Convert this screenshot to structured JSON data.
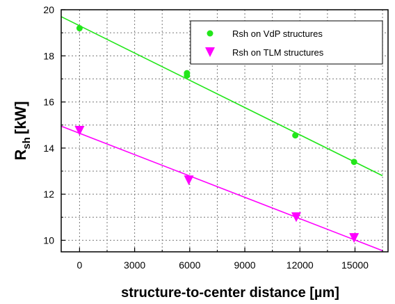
{
  "chart_data": {
    "type": "scatter",
    "xlabel": "structure-to-center distance [µm]",
    "ylabel": {
      "base": "R",
      "subscript": "sh",
      "unit": "[kW]"
    },
    "xlim": [
      -1000,
      16800
    ],
    "ylim": [
      9.5,
      20
    ],
    "x_ticks": [
      "0",
      "3000",
      "6000",
      "9000",
      "12000",
      "15000"
    ],
    "y_ticks": [
      "10",
      "12",
      "14",
      "16",
      "18",
      "20"
    ],
    "grid": "dotted",
    "legend_position": "top-right",
    "series": [
      {
        "name": "Rsh on VdP structures",
        "marker": "circle",
        "color": "#22e61a",
        "points": [
          {
            "x": 0,
            "y": 19.2
          },
          {
            "x": 5850,
            "y": 17.25
          },
          {
            "x": 5850,
            "y": 17.15
          },
          {
            "x": 11750,
            "y": 14.55
          },
          {
            "x": 14950,
            "y": 13.4
          }
        ],
        "fit_line": [
          [
            -1000,
            19.7
          ],
          [
            16500,
            12.8
          ]
        ]
      },
      {
        "name": "Rsh on TLM structures",
        "marker": "triangle-down",
        "color": "#ff00ff",
        "points": [
          {
            "x": 0,
            "y": 14.75
          },
          {
            "x": 5950,
            "y": 12.6
          },
          {
            "x": 11800,
            "y": 11.0
          },
          {
            "x": 14950,
            "y": 10.1
          }
        ],
        "fit_line": [
          [
            -1000,
            14.95
          ],
          [
            16500,
            9.55
          ]
        ]
      }
    ]
  }
}
